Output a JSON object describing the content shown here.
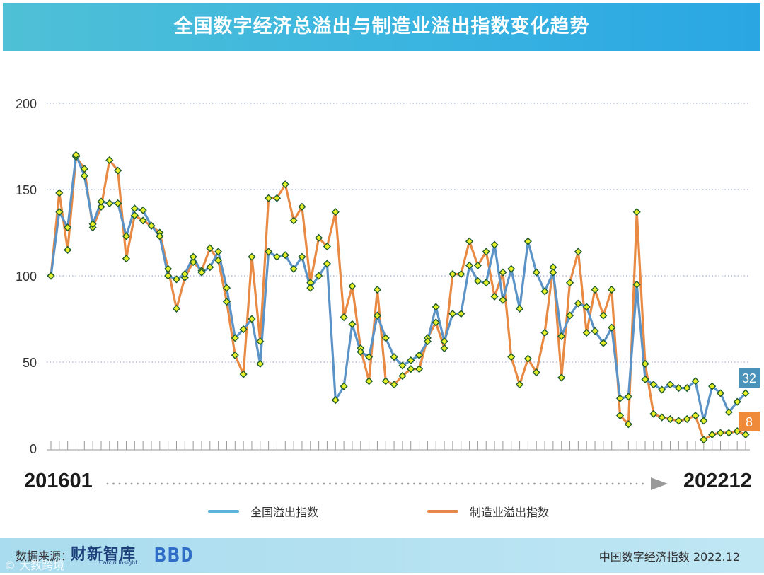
{
  "title": "全国数字经济总溢出与制造业溢出指数变化趋势",
  "range": {
    "start": "201601",
    "end": "202212"
  },
  "legend": {
    "national_label": "全国溢出指数",
    "manufacturing_label": "制造业溢出指数"
  },
  "end_labels": {
    "national": "32",
    "manufacturing": "8"
  },
  "footer": {
    "source_label": "数据来源：",
    "brand": "财新智库",
    "brand_sub": "Caixin Insight",
    "logo_text": "BBD",
    "right_text": "中国数字经济指数 2022.12",
    "watermark": "© 大数跨境"
  },
  "colors": {
    "national": "#5b93c7",
    "manufacturing": "#e88a43",
    "marker_fill": "#e6f027",
    "marker_stroke": "#1f5a2e",
    "end_national_bg": "#4a92ba",
    "end_manufacturing_bg": "#ef8a3a"
  },
  "chart_data": {
    "type": "line",
    "yticks": [
      0,
      50,
      100,
      150,
      200
    ],
    "ylim": [
      0,
      200
    ],
    "series": [
      {
        "name": "全国溢出指数",
        "values": [
          100,
          137,
          128,
          170,
          158,
          130,
          143,
          142,
          142,
          123,
          139,
          138,
          129,
          123,
          100,
          98,
          101,
          111,
          102,
          105,
          114,
          93,
          64,
          69,
          75,
          49,
          114,
          111,
          112,
          104,
          111,
          93,
          100,
          107,
          28,
          36,
          72,
          56,
          53,
          77,
          64,
          53,
          48,
          51,
          54,
          62,
          82,
          62,
          78,
          78,
          106,
          97,
          96,
          118,
          86,
          104,
          81,
          120,
          102,
          91,
          102,
          65,
          77,
          84,
          82,
          68,
          61,
          70,
          29,
          30,
          95,
          40,
          37,
          34,
          37,
          35,
          35,
          39,
          16,
          36,
          32,
          21,
          27,
          32
        ]
      },
      {
        "name": "制造业溢出指数",
        "values": [
          100,
          148,
          115,
          169,
          162,
          128,
          140,
          167,
          161,
          110,
          135,
          132,
          129,
          125,
          104,
          81,
          99,
          108,
          103,
          116,
          109,
          85,
          54,
          43,
          111,
          62,
          145,
          145,
          153,
          132,
          140,
          96,
          122,
          117,
          137,
          76,
          94,
          58,
          39,
          92,
          39,
          37,
          42,
          46,
          46,
          64,
          73,
          58,
          101,
          101,
          120,
          106,
          114,
          88,
          102,
          53,
          37,
          52,
          44,
          67,
          105,
          41,
          96,
          114,
          67,
          92,
          77,
          92,
          19,
          14,
          137,
          49,
          20,
          18,
          17,
          16,
          17,
          19,
          5,
          8,
          9,
          9,
          10,
          8
        ]
      }
    ]
  }
}
